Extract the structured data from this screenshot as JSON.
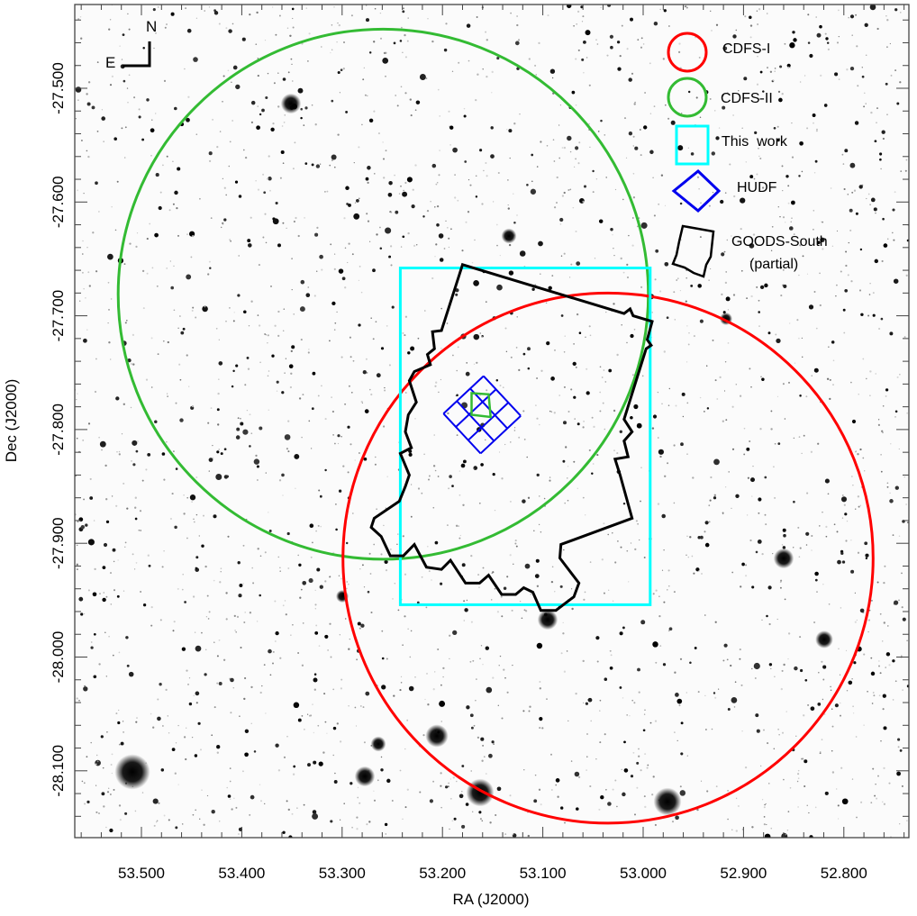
{
  "chart_data": {
    "type": "scatter",
    "title": "",
    "xlabel": "RA (J2000)",
    "ylabel": "Dec (J2000)",
    "xlim": [
      53.566,
      52.735
    ],
    "ylim": [
      -28.159,
      -27.426
    ],
    "x_ticks": [
      "53.500",
      "53.400",
      "53.300",
      "53.200",
      "53.100",
      "53.000",
      "52.900",
      "52.800"
    ],
    "y_ticks": [
      "-27.500",
      "-27.600",
      "-27.700",
      "-27.800",
      "-27.900",
      "-28.000",
      "-28.100"
    ],
    "background": "inverted grayscale optical sky image (star field)",
    "compass": {
      "north": "N",
      "east": "E"
    },
    "legend": {
      "placement": "top-right",
      "entries": [
        {
          "label": "CDFS-I",
          "shape": "circle",
          "color": "#ff0000"
        },
        {
          "label": "CDFS-II",
          "shape": "circle",
          "color": "#33bb33"
        },
        {
          "label": "This  work",
          "shape": "square",
          "color": "#00ffff"
        },
        {
          "label": "HUDF",
          "shape": "diamond",
          "color": "#0000ee"
        },
        {
          "label": "GOODS-South",
          "sublabel": "(partial)",
          "shape": "polygon",
          "color": "#000000"
        }
      ]
    },
    "regions": {
      "cdfs_i": {
        "ra": 53.035,
        "dec": -27.913,
        "radius_deg": 0.233,
        "color": "#ff0000"
      },
      "cdfs_ii": {
        "ra": 53.259,
        "dec": -27.681,
        "radius_deg": 0.233,
        "color": "#33bb33"
      },
      "this_work": {
        "ra": [
          53.242,
          52.993
        ],
        "dec": [
          -27.658,
          -27.954
        ],
        "color": "#00ffff"
      },
      "hudf": {
        "corners": [
          [
            53.199,
            -27.786
          ],
          [
            53.159,
            -27.753
          ],
          [
            53.122,
            -27.789
          ],
          [
            53.162,
            -27.821
          ]
        ],
        "grid": 3,
        "color": "#0000ee"
      },
      "hudf_inner": {
        "corners": [
          [
            53.171,
            -27.768
          ],
          [
            53.154,
            -27.769
          ],
          [
            53.152,
            -27.789
          ],
          [
            53.171,
            -27.787
          ]
        ],
        "color": "#33bb33"
      },
      "goods_south": {
        "color": "#000000",
        "vertices": [
          [
            53.18,
            -27.655
          ],
          [
            53.019,
            -27.698
          ],
          [
            53.013,
            -27.694
          ],
          [
            53.01,
            -27.7
          ],
          [
            52.991,
            -27.705
          ],
          [
            52.996,
            -27.721
          ],
          [
            52.992,
            -27.726
          ],
          [
            52.997,
            -27.729
          ],
          [
            53.019,
            -27.791
          ],
          [
            53.011,
            -27.802
          ],
          [
            53.019,
            -27.81
          ],
          [
            53.015,
            -27.824
          ],
          [
            53.028,
            -27.826
          ],
          [
            53.023,
            -27.84
          ],
          [
            53.011,
            -27.878
          ],
          [
            53.082,
            -27.901
          ],
          [
            53.083,
            -27.913
          ],
          [
            53.064,
            -27.935
          ],
          [
            53.069,
            -27.947
          ],
          [
            53.087,
            -27.959
          ],
          [
            53.102,
            -27.959
          ],
          [
            53.11,
            -27.943
          ],
          [
            53.119,
            -27.939
          ],
          [
            53.127,
            -27.945
          ],
          [
            53.141,
            -27.945
          ],
          [
            53.154,
            -27.928
          ],
          [
            53.163,
            -27.935
          ],
          [
            53.177,
            -27.935
          ],
          [
            53.192,
            -27.915
          ],
          [
            53.201,
            -27.923
          ],
          [
            53.216,
            -27.921
          ],
          [
            53.228,
            -27.901
          ],
          [
            53.239,
            -27.911
          ],
          [
            53.252,
            -27.911
          ],
          [
            53.261,
            -27.894
          ],
          [
            53.271,
            -27.886
          ],
          [
            53.268,
            -27.878
          ],
          [
            53.243,
            -27.863
          ],
          [
            53.237,
            -27.85
          ],
          [
            53.233,
            -27.84
          ],
          [
            53.242,
            -27.821
          ],
          [
            53.231,
            -27.816
          ],
          [
            53.237,
            -27.802
          ],
          [
            53.234,
            -27.787
          ],
          [
            53.226,
            -27.776
          ],
          [
            53.233,
            -27.757
          ],
          [
            53.228,
            -27.749
          ],
          [
            53.212,
            -27.743
          ],
          [
            53.215,
            -27.734
          ],
          [
            53.208,
            -27.729
          ],
          [
            53.21,
            -27.714
          ],
          [
            53.201,
            -27.713
          ]
        ]
      }
    }
  }
}
